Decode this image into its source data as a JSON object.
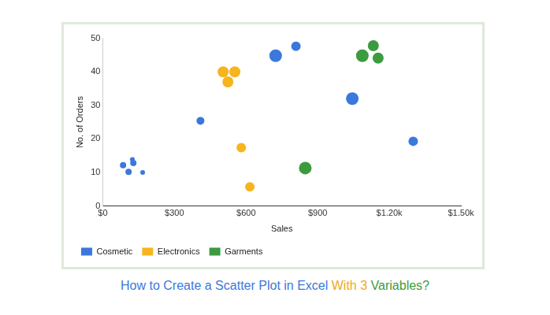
{
  "chart_data": {
    "type": "bubble",
    "title": "How to Create a Scatter Plot in Excel With 3 Variables?",
    "x_label": "Sales",
    "y_label": "No. of Orders",
    "xlim": [
      0,
      1500
    ],
    "xticks": [
      {
        "value": 0,
        "label": "$0"
      },
      {
        "value": 300,
        "label": "$300"
      },
      {
        "value": 600,
        "label": "$600"
      },
      {
        "value": 900,
        "label": "$900"
      },
      {
        "value": 1200,
        "label": "$1.20k"
      },
      {
        "value": 1500,
        "label": "$1.50k"
      }
    ],
    "ylim": [
      0,
      50
    ],
    "yticks": [
      0,
      10,
      20,
      30,
      40,
      50
    ],
    "grid": false,
    "legend": "bottom-left",
    "series": [
      {
        "name": "Cosmetic",
        "color": "#3b78dc",
        "x": [
          85,
          108,
          124,
          128,
          167,
          409,
          724,
          809,
          1045,
          1300
        ],
        "values": [
          12.2,
          10.2,
          13.9,
          12.8,
          10,
          25.4,
          44.8,
          47.6,
          32,
          19.3
        ],
        "sizes": [
          4,
          4,
          3,
          4,
          3,
          5,
          8,
          6,
          8,
          6
        ]
      },
      {
        "name": "Electronics",
        "color": "#f6b51e",
        "x": [
          504,
          553,
          524,
          580,
          616
        ],
        "values": [
          40,
          40,
          37,
          17.4,
          5.7
        ],
        "sizes": [
          7,
          7,
          7,
          6,
          6
        ]
      },
      {
        "name": "Garments",
        "color": "#3c9b3e",
        "x": [
          1087,
          1133,
          1153,
          848
        ],
        "values": [
          44.8,
          47.8,
          44.1,
          11.3
        ],
        "sizes": [
          8,
          7,
          7,
          8
        ]
      }
    ]
  }
}
